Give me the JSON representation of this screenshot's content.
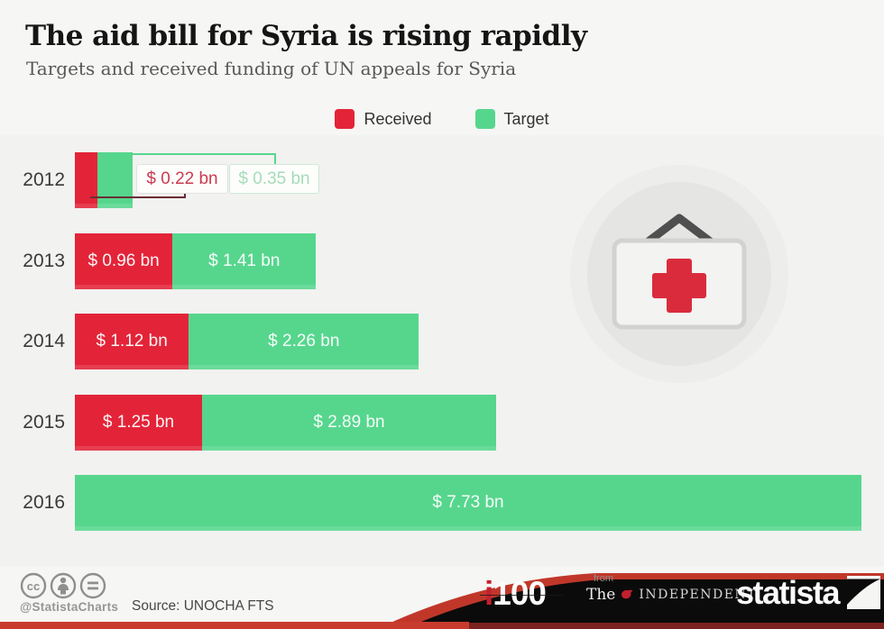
{
  "header": {
    "title": "The aid bill for Syria is rising rapidly",
    "subtitle": "Targets and received funding of UN appeals for Syria"
  },
  "legend": [
    {
      "label": "Received",
      "color": "#e32438"
    },
    {
      "label": "Target",
      "color": "#56d68d"
    }
  ],
  "chart_data": {
    "type": "bar",
    "orientation": "horizontal",
    "title": "Targets and received funding of UN appeals for Syria",
    "unit": "billion USD",
    "categories": [
      "2012",
      "2013",
      "2014",
      "2015",
      "2016"
    ],
    "series": [
      {
        "name": "Received",
        "color": "#e32438",
        "values": [
          0.22,
          0.96,
          1.12,
          1.25,
          null
        ],
        "labels": [
          "$ 0.22 bn",
          "$ 0.96 bn",
          "$ 1.12 bn",
          "$ 1.25 bn",
          ""
        ]
      },
      {
        "name": "Target",
        "color": "#56d68d",
        "values": [
          0.35,
          1.41,
          2.26,
          2.89,
          7.73
        ],
        "labels": [
          "$ 0.35 bn",
          "$ 1.41 bn",
          "$ 2.26 bn",
          "$ 2.89 bn",
          "$ 7.73 bn"
        ]
      }
    ],
    "outside_label_row": 0,
    "style": {
      "callout_received_text": "#cb3b50",
      "callout_target_text": "#a5dcb9",
      "connector_received": "#6b2e35",
      "connector_target": "#57d68d"
    },
    "legend_position": "top-center",
    "grid": false,
    "axis_labels_visible": false
  },
  "footer": {
    "license_icons": [
      "cc-icon",
      "attribution-person-icon",
      "no-derivatives-equals-icon"
    ],
    "attribution_handle": "@StatistaCharts",
    "source": "Source: UNOCHA FTS",
    "i100": {
      "i": "i",
      "num": "100"
    },
    "independent": {
      "from": "from",
      "the": "The",
      "name": "INDEPENDENT"
    },
    "statista": "statista",
    "colors": {
      "swoosh_red": "#c0372a",
      "bar_red_strip": "#c93b2e",
      "black": "#0b0b0b"
    }
  }
}
